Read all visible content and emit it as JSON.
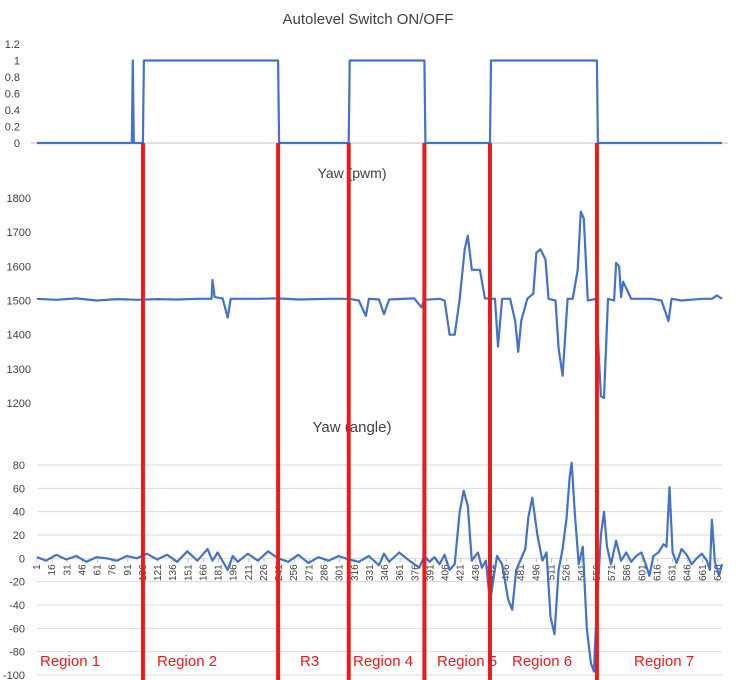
{
  "colors": {
    "series": "#4472C4",
    "divider": "#E81C1C",
    "region_label": "#E81C1C",
    "grid": "#D9D9D9",
    "text": "#404040"
  },
  "chart_data": [
    {
      "type": "line",
      "title": "Autolevel Switch ON/OFF",
      "ylim": [
        0,
        1.2
      ],
      "yticks": [
        "0",
        "0.2",
        "0.4",
        "0.6",
        "0.8",
        "1",
        "1.2"
      ],
      "series": [
        {
          "points": [
            [
              1,
              0
            ],
            [
              95,
              0
            ],
            [
              96,
              1
            ],
            [
              97,
              0
            ],
            [
              106,
              0
            ],
            [
              107,
              1
            ],
            [
              240,
              1
            ],
            [
              241,
              0
            ],
            [
              310,
              0
            ],
            [
              311,
              1
            ],
            [
              385,
              1
            ],
            [
              386,
              0
            ],
            [
              450,
              0
            ],
            [
              451,
              1
            ],
            [
              556,
              1
            ],
            [
              557,
              0
            ],
            [
              680,
              0
            ]
          ]
        }
      ]
    },
    {
      "type": "line",
      "title": "Yaw (pwm)",
      "ylim": [
        1200,
        1800
      ],
      "yticks": [
        "1200",
        "1300",
        "1400",
        "1500",
        "1600",
        "1700",
        "1800"
      ],
      "series": [
        {
          "points": [
            [
              1,
              1505
            ],
            [
              20,
              1502
            ],
            [
              40,
              1506
            ],
            [
              60,
              1500
            ],
            [
              80,
              1504
            ],
            [
              100,
              1502
            ],
            [
              120,
              1504
            ],
            [
              140,
              1503
            ],
            [
              160,
              1505
            ],
            [
              174,
              1505
            ],
            [
              175,
              1560
            ],
            [
              177,
              1510
            ],
            [
              185,
              1506
            ],
            [
              190,
              1450
            ],
            [
              193,
              1505
            ],
            [
              220,
              1505
            ],
            [
              240,
              1506
            ],
            [
              260,
              1503
            ],
            [
              290,
              1505
            ],
            [
              310,
              1505
            ],
            [
              320,
              1500
            ],
            [
              327,
              1455
            ],
            [
              330,
              1505
            ],
            [
              340,
              1503
            ],
            [
              345,
              1460
            ],
            [
              350,
              1503
            ],
            [
              375,
              1506
            ],
            [
              382,
              1480
            ],
            [
              385,
              1502
            ],
            [
              400,
              1505
            ],
            [
              405,
              1500
            ],
            [
              410,
              1400
            ],
            [
              415,
              1400
            ],
            [
              420,
              1505
            ],
            [
              425,
              1650
            ],
            [
              428,
              1690
            ],
            [
              432,
              1590
            ],
            [
              440,
              1590
            ],
            [
              445,
              1506
            ],
            [
              455,
              1505
            ],
            [
              458,
              1365
            ],
            [
              462,
              1505
            ],
            [
              470,
              1505
            ],
            [
              475,
              1440
            ],
            [
              478,
              1350
            ],
            [
              481,
              1440
            ],
            [
              487,
              1505
            ],
            [
              493,
              1520
            ],
            [
              496,
              1640
            ],
            [
              500,
              1650
            ],
            [
              505,
              1620
            ],
            [
              508,
              1505
            ],
            [
              515,
              1500
            ],
            [
              518,
              1360
            ],
            [
              522,
              1280
            ],
            [
              527,
              1505
            ],
            [
              532,
              1505
            ],
            [
              537,
              1590
            ],
            [
              540,
              1760
            ],
            [
              543,
              1740
            ],
            [
              547,
              1500
            ],
            [
              555,
              1505
            ],
            [
              560,
              1220
            ],
            [
              563,
              1215
            ],
            [
              567,
              1505
            ],
            [
              573,
              1500
            ],
            [
              575,
              1610
            ],
            [
              578,
              1600
            ],
            [
              580,
              1510
            ],
            [
              582,
              1555
            ],
            [
              590,
              1505
            ],
            [
              600,
              1505
            ],
            [
              610,
              1505
            ],
            [
              620,
              1500
            ],
            [
              627,
              1440
            ],
            [
              630,
              1505
            ],
            [
              640,
              1500
            ],
            [
              660,
              1505
            ],
            [
              670,
              1505
            ],
            [
              675,
              1515
            ],
            [
              680,
              1505
            ]
          ]
        }
      ]
    },
    {
      "type": "line",
      "title": "Yaw (angle)",
      "ylim": [
        -100,
        80
      ],
      "yticks": [
        "-100",
        "-80",
        "-60",
        "-40",
        "-20",
        "0",
        "20",
        "40",
        "60",
        "80"
      ],
      "xticks": [
        "1",
        "16",
        "31",
        "46",
        "61",
        "76",
        "91",
        "106",
        "121",
        "136",
        "151",
        "166",
        "181",
        "196",
        "211",
        "226",
        "241",
        "256",
        "271",
        "286",
        "301",
        "316",
        "331",
        "346",
        "361",
        "376",
        "391",
        "406",
        "421",
        "436",
        "451",
        "466",
        "481",
        "496",
        "511",
        "526",
        "541",
        "556",
        "571",
        "586",
        "601",
        "616",
        "631",
        "646",
        "661",
        "676"
      ],
      "series": [
        {
          "points": [
            [
              1,
              1
            ],
            [
              10,
              -2
            ],
            [
              20,
              3
            ],
            [
              30,
              -1
            ],
            [
              40,
              2
            ],
            [
              50,
              -3
            ],
            [
              60,
              1
            ],
            [
              70,
              0
            ],
            [
              80,
              -2
            ],
            [
              90,
              2
            ],
            [
              100,
              0
            ],
            [
              110,
              4
            ],
            [
              120,
              -1
            ],
            [
              130,
              3
            ],
            [
              140,
              -3
            ],
            [
              150,
              6
            ],
            [
              160,
              -2
            ],
            [
              170,
              8
            ],
            [
              175,
              -2
            ],
            [
              180,
              5
            ],
            [
              190,
              -10
            ],
            [
              195,
              2
            ],
            [
              200,
              -3
            ],
            [
              210,
              4
            ],
            [
              220,
              -2
            ],
            [
              230,
              6
            ],
            [
              240,
              0
            ],
            [
              250,
              -3
            ],
            [
              260,
              3
            ],
            [
              270,
              -4
            ],
            [
              280,
              1
            ],
            [
              290,
              -2
            ],
            [
              300,
              2
            ],
            [
              310,
              -1
            ],
            [
              320,
              -3
            ],
            [
              330,
              2
            ],
            [
              340,
              -6
            ],
            [
              345,
              4
            ],
            [
              350,
              -3
            ],
            [
              360,
              5
            ],
            [
              370,
              -2
            ],
            [
              380,
              -8
            ],
            [
              385,
              2
            ],
            [
              390,
              -3
            ],
            [
              395,
              1
            ],
            [
              400,
              -5
            ],
            [
              405,
              3
            ],
            [
              410,
              -10
            ],
            [
              415,
              -5
            ],
            [
              420,
              40
            ],
            [
              424,
              58
            ],
            [
              428,
              45
            ],
            [
              432,
              -2
            ],
            [
              438,
              5
            ],
            [
              442,
              -8
            ],
            [
              446,
              -2
            ],
            [
              450,
              -38
            ],
            [
              453,
              -20
            ],
            [
              457,
              2
            ],
            [
              462,
              -5
            ],
            [
              468,
              -35
            ],
            [
              472,
              -44
            ],
            [
              476,
              -10
            ],
            [
              480,
              -2
            ],
            [
              485,
              8
            ],
            [
              488,
              35
            ],
            [
              492,
              52
            ],
            [
              497,
              20
            ],
            [
              502,
              -2
            ],
            [
              506,
              5
            ],
            [
              510,
              -50
            ],
            [
              514,
              -65
            ],
            [
              518,
              -10
            ],
            [
              522,
              8
            ],
            [
              526,
              35
            ],
            [
              529,
              70
            ],
            [
              531,
              82
            ],
            [
              534,
              40
            ],
            [
              538,
              -5
            ],
            [
              542,
              10
            ],
            [
              546,
              -60
            ],
            [
              550,
              -90
            ],
            [
              553,
              -97
            ],
            [
              556,
              -40
            ],
            [
              560,
              20
            ],
            [
              563,
              40
            ],
            [
              566,
              10
            ],
            [
              570,
              -5
            ],
            [
              575,
              15
            ],
            [
              580,
              -2
            ],
            [
              585,
              5
            ],
            [
              590,
              -3
            ],
            [
              595,
              2
            ],
            [
              600,
              5
            ],
            [
              604,
              -4
            ],
            [
              608,
              -15
            ],
            [
              612,
              2
            ],
            [
              617,
              5
            ],
            [
              622,
              12
            ],
            [
              625,
              10
            ],
            [
              628,
              61
            ],
            [
              631,
              5
            ],
            [
              635,
              -4
            ],
            [
              640,
              8
            ],
            [
              645,
              3
            ],
            [
              650,
              -5
            ],
            [
              655,
              0
            ],
            [
              660,
              4
            ],
            [
              665,
              -2
            ],
            [
              668,
              -10
            ],
            [
              670,
              33
            ],
            [
              673,
              -3
            ],
            [
              677,
              -15
            ],
            [
              680,
              -5
            ]
          ]
        }
      ]
    }
  ],
  "dividers": {
    "x_values": [
      106,
      240,
      310,
      385,
      450,
      556
    ]
  },
  "region_labels": [
    "Region 1",
    "Region 2",
    "R3",
    "Region 4",
    "Region 5",
    "Region 6",
    "Region 7"
  ]
}
